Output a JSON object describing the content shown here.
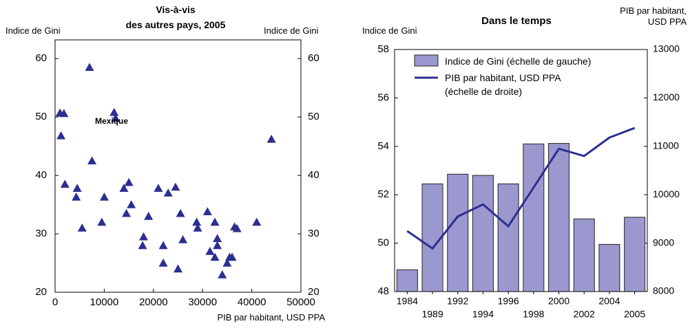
{
  "chart_data": [
    {
      "type": "scatter",
      "title": "Vis-à-vis\ndes autres pays, 2005",
      "y_label": "Indice de Gini",
      "y2_label": "Indice de Gini",
      "x_label": "PIB par habitant, USD PPA",
      "color": "#2b2f8f",
      "x": [
        1000,
        1800,
        1200,
        7000,
        12000,
        12300,
        44000,
        2000,
        4500,
        4300,
        5500,
        7500,
        9500,
        10000,
        14000,
        14500,
        15000,
        15500,
        18000,
        17800,
        19000,
        21000,
        22000,
        22000,
        23000,
        24500,
        25000,
        25500,
        26000,
        28800,
        29000,
        31000,
        31500,
        32500,
        33000,
        33000,
        32500,
        34000,
        35000,
        35500,
        36000,
        36500,
        37000,
        41000
      ],
      "values": [
        50.7,
        50.6,
        46.8,
        58.5,
        50.8,
        49.8,
        46.2,
        38.5,
        37.8,
        36.3,
        31,
        42.5,
        32,
        36.3,
        37.8,
        33.5,
        38.8,
        35,
        29.5,
        28,
        33,
        37.8,
        28,
        25,
        37,
        38,
        24,
        33.5,
        29,
        32,
        31,
        33.8,
        27,
        32,
        29.2,
        28,
        26,
        23,
        25,
        26,
        26,
        31.2,
        30.9,
        32
      ],
      "annotations": [
        "Mexique"
      ],
      "xlim": [
        0,
        50000
      ],
      "xticks": [
        0,
        10000,
        20000,
        30000,
        40000,
        50000
      ],
      "ylim": [
        20,
        63.2
      ],
      "yticks": [
        20,
        30,
        40,
        50,
        60
      ]
    },
    {
      "type": "bar",
      "title": "Dans le temps",
      "y_label": "Indice de Gini",
      "y2_label": "PIB par habitant,\nUSD PPA",
      "categories": [
        "1984",
        "1989",
        "1992",
        "1994",
        "1996",
        "1998",
        "2000",
        "2002",
        "2004",
        "2005"
      ],
      "series": [
        {
          "name": "Indice de Gini (échelle de gauche)",
          "color": "#9b98cf",
          "values": [
            48.9,
            52.45,
            52.85,
            52.8,
            52.45,
            54.1,
            54.12,
            51.0,
            49.95,
            51.07
          ]
        },
        {
          "name": "PIB par habitant, USD PPA\n(échelle de droite)",
          "color": "#2b2f8f",
          "type": "line",
          "axis": "y2",
          "values": [
            9250,
            8890,
            9550,
            9800,
            9350,
            10150,
            10950,
            10800,
            11180,
            11380
          ]
        }
      ],
      "ylim": [
        48,
        58
      ],
      "yticks": [
        48,
        50,
        52,
        54,
        56,
        58
      ],
      "y2lim": [
        8000,
        13000
      ],
      "y2ticks": [
        8000,
        9000,
        10000,
        11000,
        12000,
        13000
      ]
    }
  ]
}
